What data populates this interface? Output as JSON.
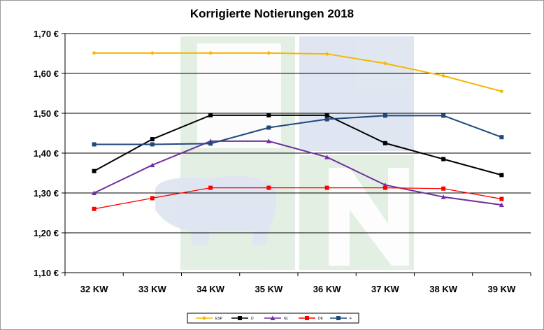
{
  "chart_data": {
    "type": "line",
    "title": "Korrigierte Notierungen 2018",
    "xlabel": "",
    "ylabel": "",
    "categories": [
      "32 KW",
      "33 KW",
      "34 KW",
      "35 KW",
      "36 KW",
      "37 KW",
      "38 KW",
      "39 KW"
    ],
    "ylim": [
      1.1,
      1.7
    ],
    "yticks": [
      "1,10 €",
      "1,20 €",
      "1,30 €",
      "1,40 €",
      "1,50 €",
      "1,60 €",
      "1,70 €"
    ],
    "grid": true,
    "legend_position": "bottom",
    "series": [
      {
        "name": "ESP",
        "color": "#f5b800",
        "marker": "diamond",
        "values": [
          1.651,
          1.651,
          1.651,
          1.651,
          1.649,
          1.625,
          1.594,
          1.555
        ]
      },
      {
        "name": "D",
        "color": "#000000",
        "marker": "square",
        "values": [
          1.355,
          1.435,
          1.495,
          1.495,
          1.495,
          1.425,
          1.385,
          1.345
        ]
      },
      {
        "name": "NL",
        "color": "#7030a0",
        "marker": "triangle",
        "values": [
          1.3,
          1.37,
          1.43,
          1.43,
          1.39,
          1.32,
          1.29,
          1.27
        ]
      },
      {
        "name": "DK",
        "color": "#ff0000",
        "marker": "square",
        "values": [
          1.26,
          1.287,
          1.313,
          1.313,
          1.313,
          1.313,
          1.311,
          1.285
        ]
      },
      {
        "name": "F",
        "color": "#1f497d",
        "marker": "square",
        "values": [
          1.422,
          1.422,
          1.424,
          1.464,
          1.485,
          1.494,
          1.494,
          1.44
        ]
      }
    ]
  }
}
